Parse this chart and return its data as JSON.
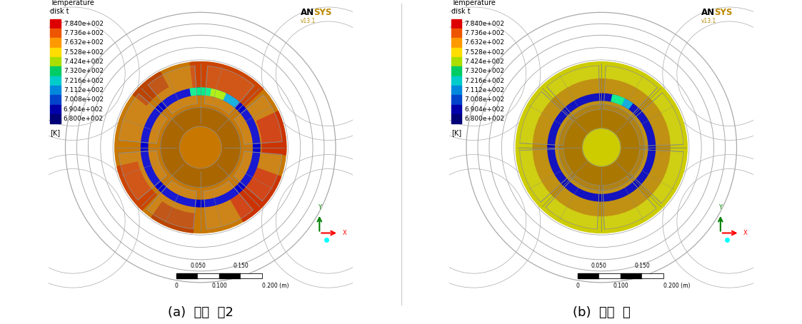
{
  "figure_width": 11.23,
  "figure_height": 4.54,
  "background_color": "#ffffff",
  "panel_a_label": "(a)  기본  휠2",
  "panel_b_label": "(b)  개발  휠",
  "colorbar_title_line1": "Temperature",
  "colorbar_title_line2": "disk t",
  "colorbar_values": [
    "7.840e+002",
    "7.736e+002",
    "7.632e+002",
    "7.528e+002",
    "7.424e+002",
    "7.320e+002",
    "7.216e+002",
    "7.112e+002",
    "7.008e+002",
    "6.904e+002",
    "6.800e+002"
  ],
  "colorbar_colors": [
    "#dd0000",
    "#ee5500",
    "#ff9900",
    "#ffdd00",
    "#aadd00",
    "#00cc66",
    "#00cccc",
    "#0088dd",
    "#0044cc",
    "#0000aa",
    "#000077"
  ],
  "colorbar_unit": "[K]",
  "ansys_version": "v13.1",
  "label_fontsize": 13,
  "colorbar_fontsize": 7.0,
  "disk_a_outer_color": "#c87800",
  "disk_a_hot_color": "#bb3300",
  "disk_a_inner_color": "#aa6600",
  "disk_b_outer_color": "#cccc00",
  "disk_b_mid_color": "#bb8800",
  "disk_b_inner_color": "#aa7700",
  "brake_ring_blue": "#0000bb",
  "brake_ring_cyan": "#00aaee",
  "brake_ring_green": "#00ee88",
  "brake_ring_yellow": "#aaee00",
  "wheel_line_color": "#aaaaaa",
  "spoke_line_color": "#888888"
}
